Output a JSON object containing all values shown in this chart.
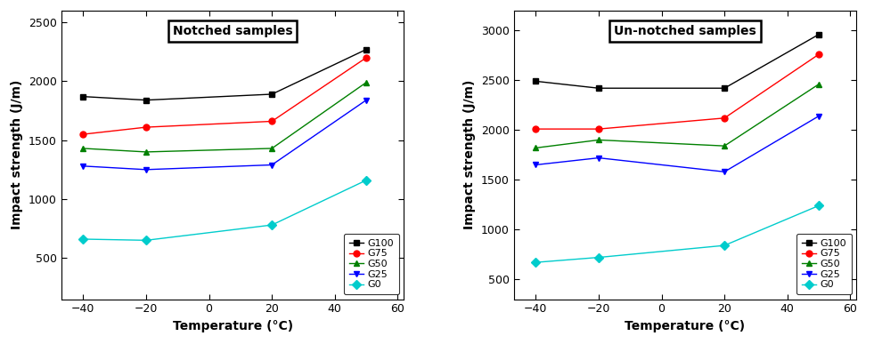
{
  "temperatures": [
    -40,
    -20,
    20,
    50
  ],
  "notched": {
    "G100": [
      1870,
      1840,
      1890,
      2270
    ],
    "G75": [
      1550,
      1610,
      1660,
      2200
    ],
    "G50": [
      1430,
      1400,
      1430,
      1990
    ],
    "G25": [
      1280,
      1250,
      1290,
      1840
    ],
    "G0": [
      660,
      650,
      780,
      1160
    ]
  },
  "unnotched": {
    "G100": [
      2490,
      2420,
      2420,
      2960
    ],
    "G75": [
      2010,
      2010,
      2120,
      2760
    ],
    "G50": [
      1820,
      1900,
      1840,
      2460
    ],
    "G25": [
      1650,
      1720,
      1580,
      2140
    ],
    "G0": [
      670,
      720,
      840,
      1240
    ]
  },
  "series_colors": {
    "G100": "#000000",
    "G75": "#ff0000",
    "G50": "#008000",
    "G25": "#0000ff",
    "G0": "#00cccc"
  },
  "series_markers": {
    "G100": "s",
    "G75": "o",
    "G50": "^",
    "G25": "v",
    "G0": "D"
  },
  "notched_title": "Notched samples",
  "unnotched_title": "Un-notched samples",
  "xlabel": "Temperature (°C)",
  "ylabel": "Impact strength (J/m)",
  "notched_ylim": [
    150,
    2600
  ],
  "unnotched_ylim": [
    300,
    3200
  ],
  "notched_yticks": [
    500,
    1000,
    1500,
    2000,
    2500
  ],
  "unnotched_yticks": [
    500,
    1000,
    1500,
    2000,
    2500,
    3000
  ],
  "xticks": [
    -40,
    -20,
    0,
    20,
    40,
    60
  ],
  "xlim": [
    -47,
    62
  ],
  "series_order": [
    "G100",
    "G75",
    "G50",
    "G25",
    "G0"
  ]
}
